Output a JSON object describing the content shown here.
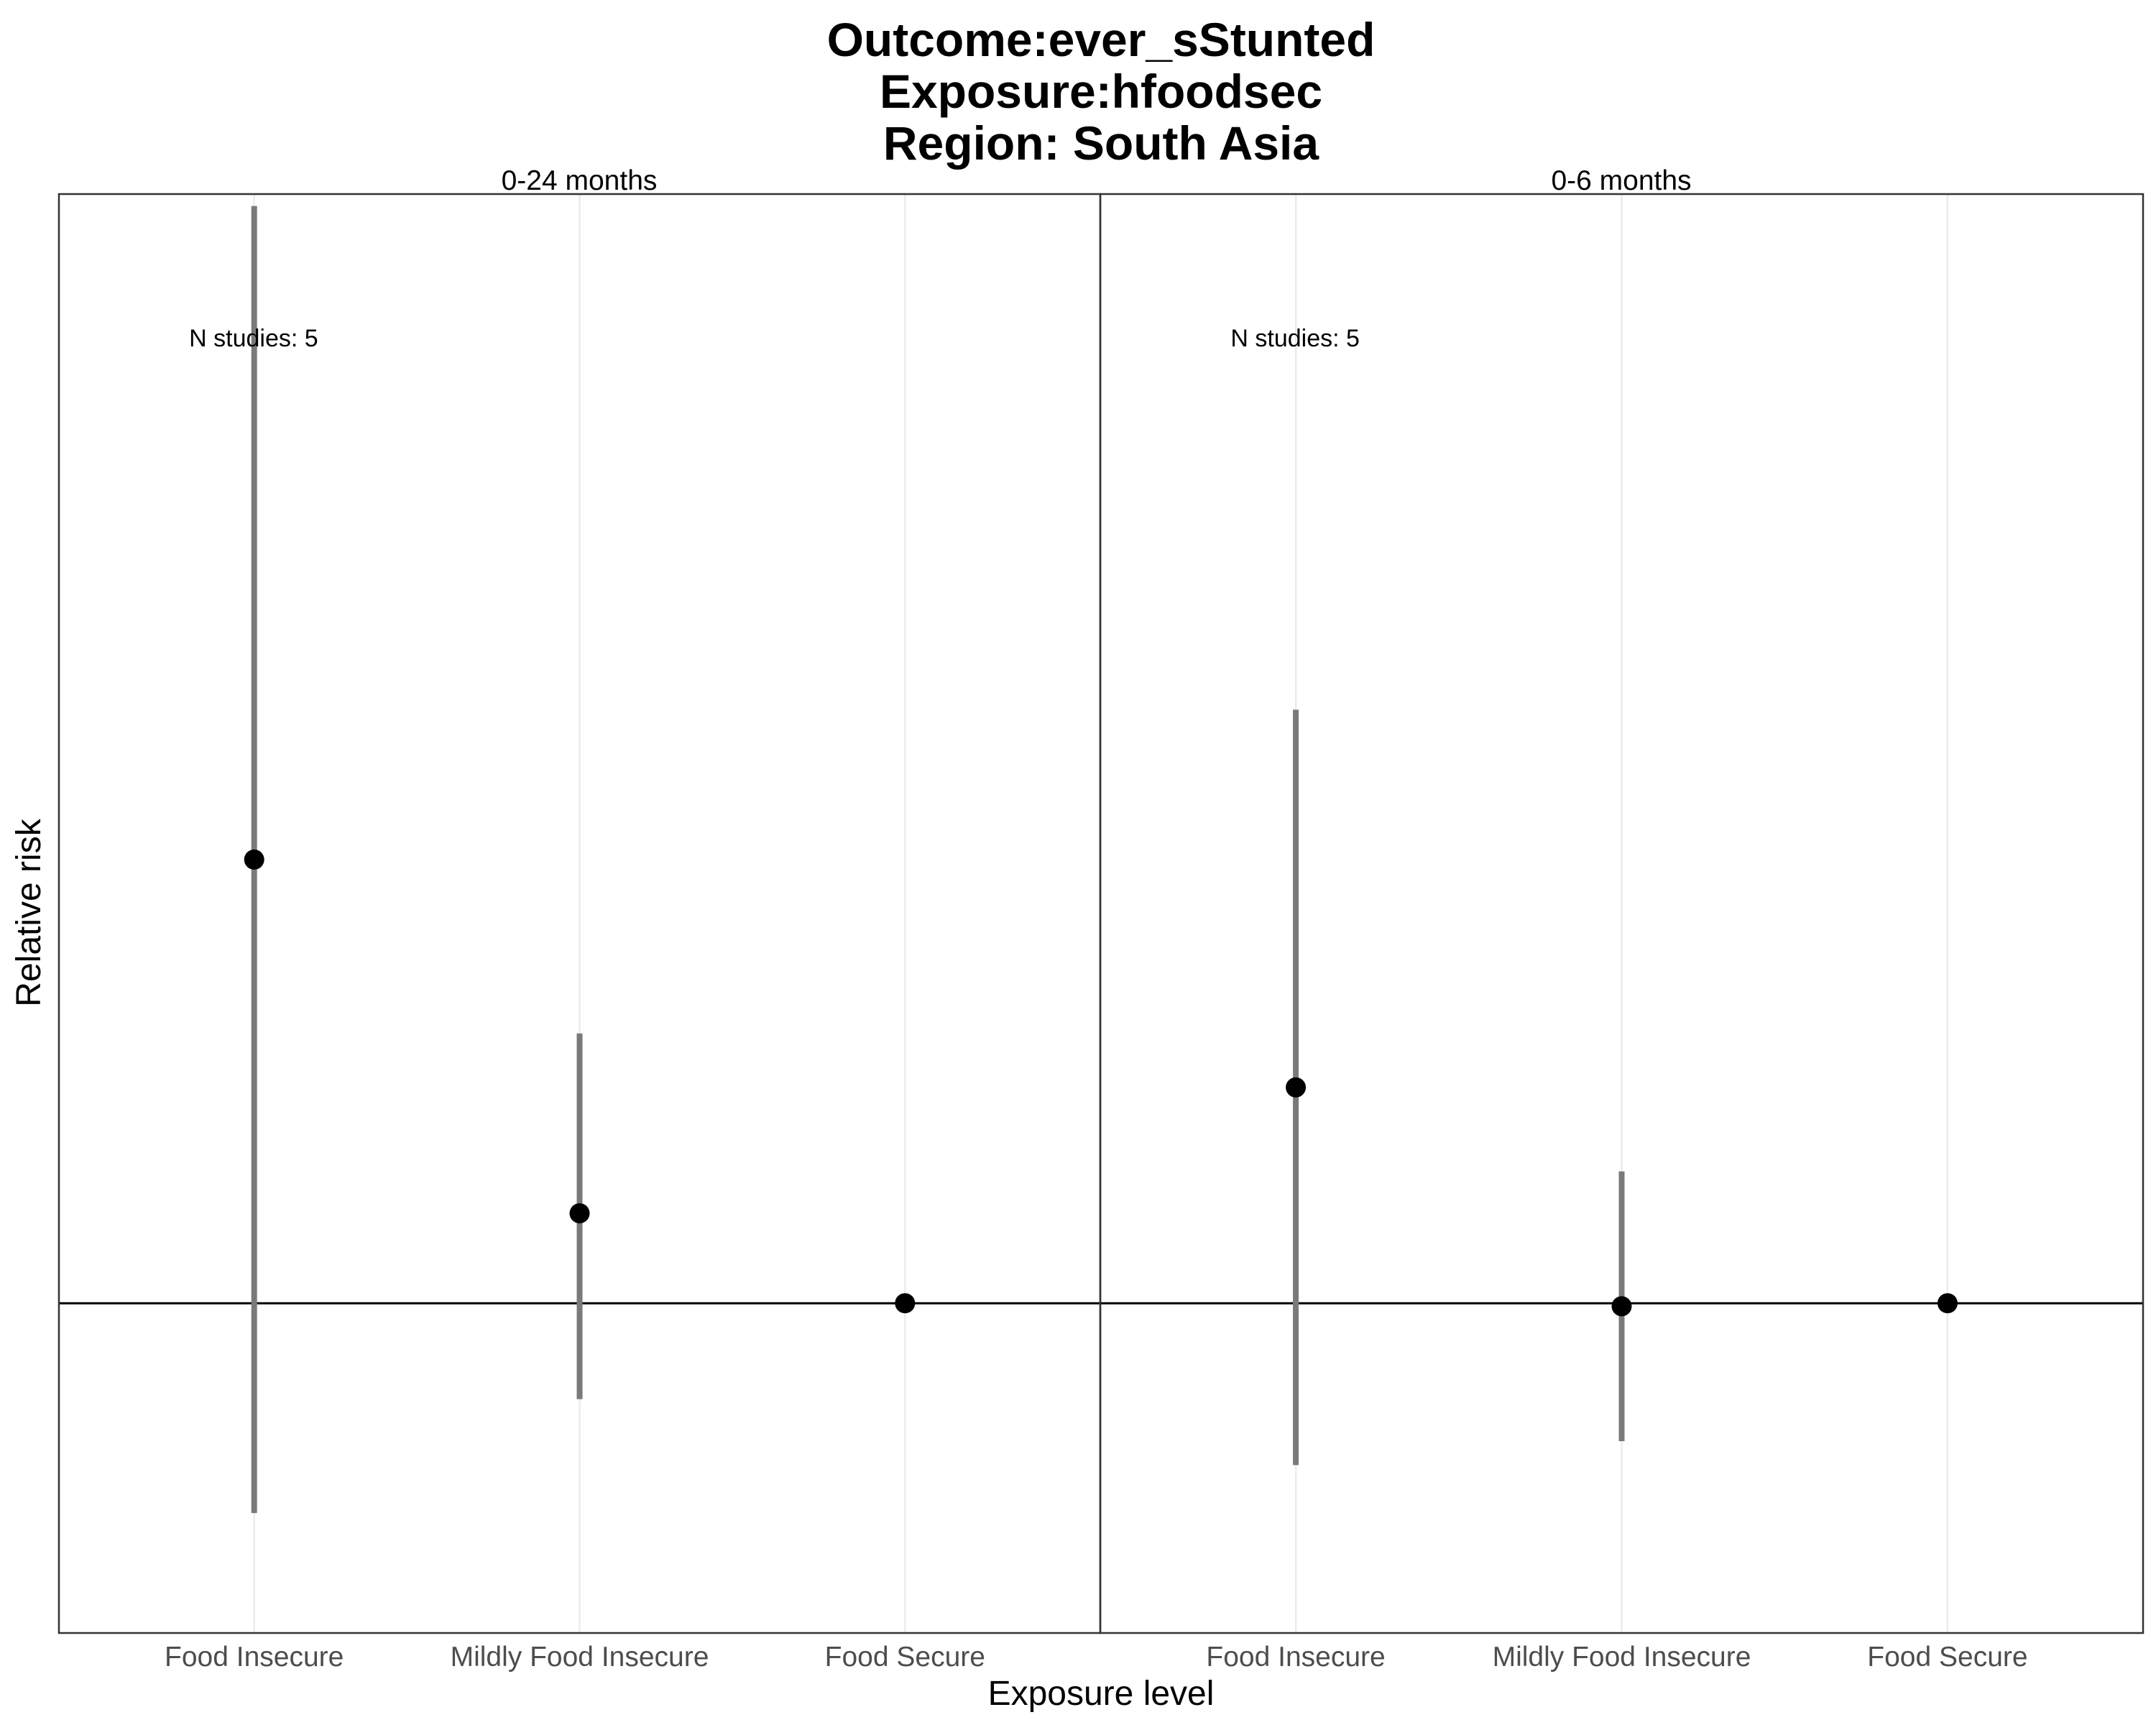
{
  "chart_data": {
    "type": "scatter",
    "title_lines": [
      "Outcome:ever_sStunted",
      "Exposure:hfoodsec",
      "Region: South Asia"
    ],
    "xlabel": "Exposure level",
    "ylabel": "Relative risk",
    "categories": [
      "Food Insecure",
      "Mildly Food Insecure",
      "Food Secure"
    ],
    "reference_line": 1,
    "ylim": [
      0.45,
      2.85
    ],
    "y_tick_labels_shown": false,
    "grid": "vertical major only",
    "colors": {
      "point": "#000000",
      "errorbar": "#7a7a7a",
      "grid": "#ebebeb",
      "panel_border": "#333333"
    },
    "panels": [
      {
        "label": "0-24 months",
        "annotation": "N studies: 5",
        "estimates": [
          1.74,
          1.15,
          1.0
        ],
        "ci_lower": [
          0.65,
          0.84,
          1.0
        ],
        "ci_upper": [
          2.83,
          1.45,
          1.0
        ]
      },
      {
        "label": "0-6 months",
        "annotation": "N studies: 5",
        "estimates": [
          1.36,
          0.995,
          1.0
        ],
        "ci_lower": [
          0.73,
          0.77,
          1.0
        ],
        "ci_upper": [
          1.99,
          1.22,
          1.0
        ]
      }
    ]
  }
}
